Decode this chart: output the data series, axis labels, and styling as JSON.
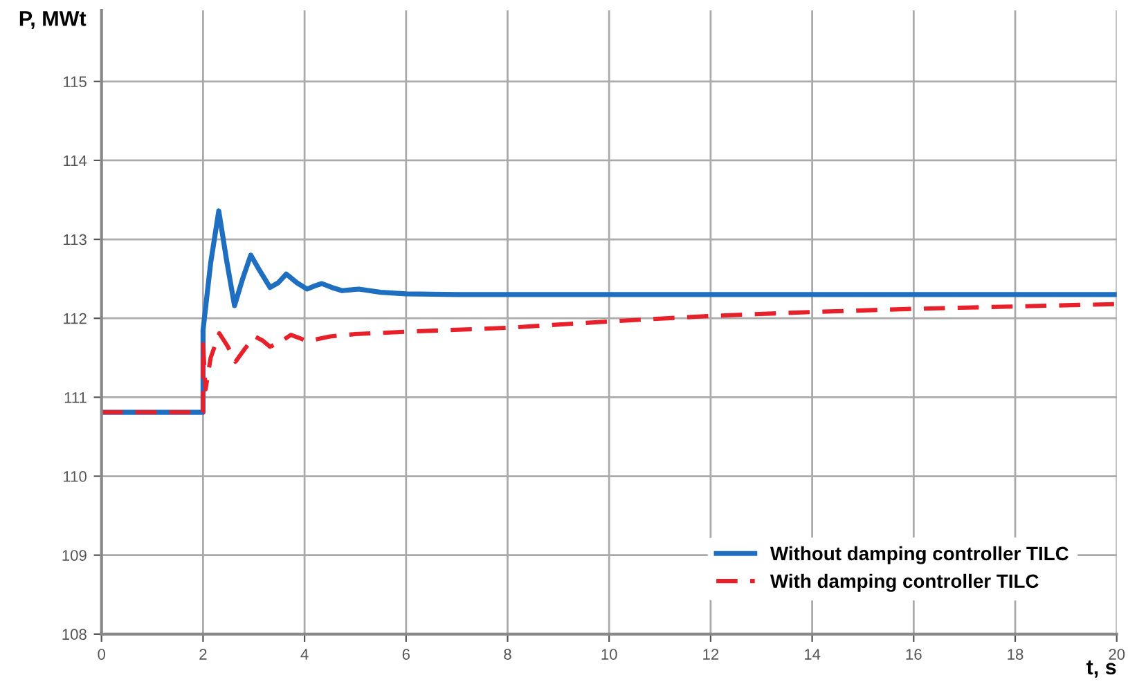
{
  "chart_data": {
    "type": "line",
    "xlabel": "t, s",
    "ylabel": "P, MWt",
    "xlim": [
      0,
      20
    ],
    "xticks": [
      0,
      2,
      4,
      6,
      8,
      10,
      12,
      14,
      16,
      18,
      20
    ],
    "ylim": [
      108,
      115.9
    ],
    "yticks": [
      108,
      109,
      110,
      111,
      112,
      113,
      114,
      115
    ],
    "grid": true,
    "legend": "bottom right",
    "marker": "none",
    "series": [
      {
        "name": "Without damping controller TILC",
        "color": "#1f6fc0",
        "line_style": "solid",
        "x": [
          0,
          2,
          2,
          2.15,
          2.31,
          2.46,
          2.62,
          2.78,
          2.94,
          3.12,
          3.32,
          3.48,
          3.64,
          3.85,
          4.05,
          4.2,
          4.34,
          4.54,
          4.74,
          4.9,
          5.07,
          5.5,
          6,
          7,
          8,
          10,
          12,
          14,
          16,
          18,
          20
        ],
        "values": [
          110.81,
          110.81,
          111.85,
          112.7,
          113.36,
          112.75,
          112.16,
          112.5,
          112.8,
          112.6,
          112.39,
          112.45,
          112.56,
          112.45,
          112.37,
          112.41,
          112.44,
          112.39,
          112.35,
          112.36,
          112.37,
          112.33,
          112.31,
          112.3,
          112.3,
          112.3,
          112.3,
          112.3,
          112.3,
          112.3,
          112.3
        ]
      },
      {
        "name": "With damping controller TILC",
        "color": "#e8202a",
        "line_style": "dashed",
        "x": [
          0,
          2,
          2,
          2.05,
          2.15,
          2.32,
          2.48,
          2.64,
          2.83,
          3.02,
          3.17,
          3.32,
          3.52,
          3.73,
          3.9,
          4.05,
          4.5,
          5,
          6,
          8,
          10,
          12,
          14,
          16,
          18,
          20
        ],
        "values": [
          110.81,
          110.81,
          111.67,
          111.1,
          111.5,
          111.81,
          111.65,
          111.45,
          111.62,
          111.77,
          111.72,
          111.64,
          111.7,
          111.79,
          111.75,
          111.71,
          111.77,
          111.8,
          111.83,
          111.88,
          111.96,
          112.03,
          112.08,
          112.12,
          112.15,
          112.18
        ]
      }
    ]
  }
}
